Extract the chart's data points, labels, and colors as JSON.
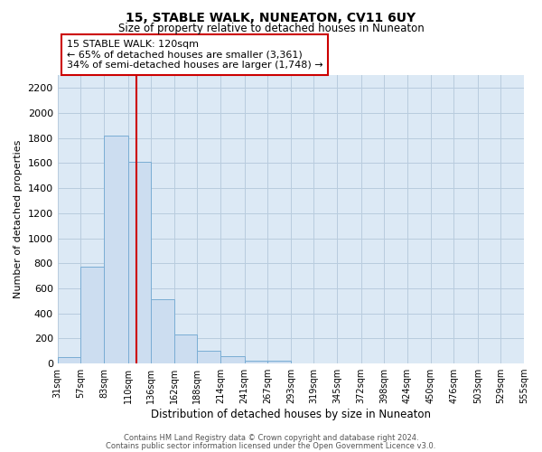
{
  "title": "15, STABLE WALK, NUNEATON, CV11 6UY",
  "subtitle": "Size of property relative to detached houses in Nuneaton",
  "xlabel": "Distribution of detached houses by size in Nuneaton",
  "ylabel": "Number of detached properties",
  "bar_color": "#ccddf0",
  "bar_edge_color": "#7aadd4",
  "background_color": "#ffffff",
  "plot_bg_color": "#dce9f5",
  "grid_color": "#b8ccde",
  "tick_labels": [
    "31sqm",
    "57sqm",
    "83sqm",
    "110sqm",
    "136sqm",
    "162sqm",
    "188sqm",
    "214sqm",
    "241sqm",
    "267sqm",
    "293sqm",
    "319sqm",
    "345sqm",
    "372sqm",
    "398sqm",
    "424sqm",
    "450sqm",
    "476sqm",
    "503sqm",
    "529sqm",
    "555sqm"
  ],
  "bar_heights": [
    50,
    775,
    1820,
    1610,
    510,
    230,
    105,
    55,
    25,
    20,
    0,
    0,
    0,
    0,
    0,
    0,
    0,
    0,
    0,
    0
  ],
  "red_line_x": 120,
  "bin_edges": [
    31,
    57,
    83,
    110,
    136,
    162,
    188,
    214,
    241,
    267,
    293,
    319,
    345,
    372,
    398,
    424,
    450,
    476,
    503,
    529,
    555
  ],
  "annotation_title": "15 STABLE WALK: 120sqm",
  "annotation_line1": "← 65% of detached houses are smaller (3,361)",
  "annotation_line2": "34% of semi-detached houses are larger (1,748) →",
  "annotation_box_color": "#ffffff",
  "annotation_box_edge": "#cc0000",
  "red_line_color": "#cc0000",
  "ylim": [
    0,
    2300
  ],
  "yticks": [
    0,
    200,
    400,
    600,
    800,
    1000,
    1200,
    1400,
    1600,
    1800,
    2000,
    2200
  ],
  "footer_line1": "Contains HM Land Registry data © Crown copyright and database right 2024.",
  "footer_line2": "Contains public sector information licensed under the Open Government Licence v3.0."
}
